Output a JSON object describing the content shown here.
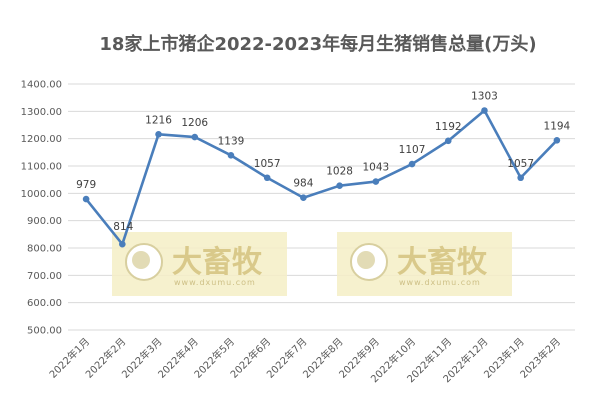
{
  "chart_data": {
    "type": "line",
    "title": "18家上市猪企2022-2023年每月生猪销售总量(万头)",
    "xlabel": "",
    "ylabel": "",
    "categories": [
      "2022年1月",
      "2022年2月",
      "2022年3月",
      "2022年4月",
      "2022年5月",
      "2022年6月",
      "2022年7月",
      "2022年8月",
      "2022年9月",
      "2022年10月",
      "2022年11月",
      "2022年12月",
      "2023年1月",
      "2023年2月"
    ],
    "values": [
      979,
      814,
      1216,
      1206,
      1139,
      1057,
      984,
      1028,
      1043,
      1107,
      1192,
      1303,
      1057,
      1194
    ],
    "ylim": [
      500,
      1400
    ],
    "yticks": [
      "500.00",
      "600.00",
      "700.00",
      "800.00",
      "900.00",
      "1000.00",
      "1100.00",
      "1200.00",
      "1300.00",
      "1400.00"
    ],
    "grid": true,
    "legend": "none",
    "line_color": "#4a7ebb",
    "grid_color": "#d9d9d9"
  },
  "watermark": {
    "text": "大畜牧",
    "subtext": "www.dxumu.com",
    "color": "#f5efc6"
  }
}
